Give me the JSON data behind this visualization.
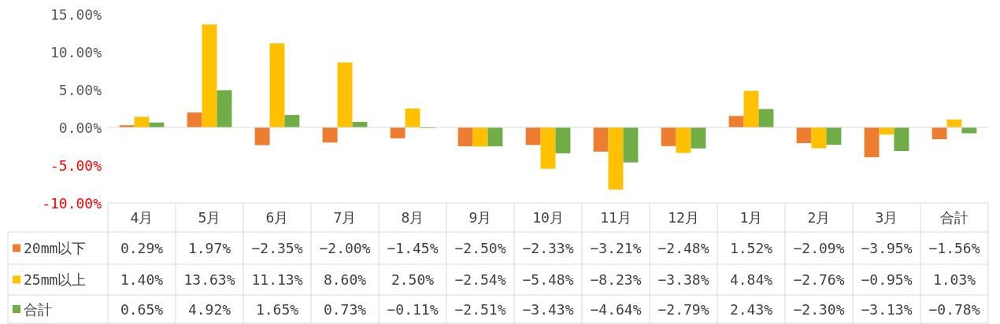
{
  "chart_data": {
    "type": "bar",
    "categories": [
      "4月",
      "5月",
      "6月",
      "7月",
      "8月",
      "9月",
      "10月",
      "11月",
      "12月",
      "1月",
      "2月",
      "3月",
      "合計"
    ],
    "series": [
      {
        "name": "20mm以下",
        "color": "#ed7d31",
        "values": [
          0.29,
          1.97,
          -2.35,
          -2.0,
          -1.45,
          -2.5,
          -2.33,
          -3.21,
          -2.48,
          1.52,
          -2.09,
          -3.95,
          -1.56
        ],
        "value_labels": [
          "0.29%",
          "1.97%",
          "−2.35%",
          "−2.00%",
          "−1.45%",
          "−2.50%",
          "−2.33%",
          "−3.21%",
          "−2.48%",
          "1.52%",
          "−2.09%",
          "−3.95%",
          "−1.56%"
        ]
      },
      {
        "name": "25mm以上",
        "color": "#ffc000",
        "values": [
          1.4,
          13.63,
          11.13,
          8.6,
          2.5,
          -2.54,
          -5.48,
          -8.23,
          -3.38,
          4.84,
          -2.76,
          -0.95,
          1.03
        ],
        "value_labels": [
          "1.40%",
          "13.63%",
          "11.13%",
          "8.60%",
          "2.50%",
          "−2.54%",
          "−5.48%",
          "−8.23%",
          "−3.38%",
          "4.84%",
          "−2.76%",
          "−0.95%",
          "1.03%"
        ]
      },
      {
        "name": "合計",
        "color": "#70ad47",
        "values": [
          0.65,
          4.92,
          1.65,
          0.73,
          -0.11,
          -2.51,
          -3.43,
          -4.64,
          -2.79,
          2.43,
          -2.3,
          -3.13,
          -0.78
        ],
        "value_labels": [
          "0.65%",
          "4.92%",
          "1.65%",
          "0.73%",
          "−0.11%",
          "−2.51%",
          "−3.43%",
          "−4.64%",
          "−2.79%",
          "2.43%",
          "−2.30%",
          "−3.13%",
          "−0.78%"
        ]
      }
    ],
    "ylim": [
      -10,
      15
    ],
    "yticks": [
      {
        "value": -10,
        "label": "-10.00%"
      },
      {
        "value": -5,
        "label": "-5.00%"
      },
      {
        "value": 0,
        "label": "0.00%"
      },
      {
        "value": 5,
        "label": "5.00%"
      },
      {
        "value": 10,
        "label": "10.00%"
      },
      {
        "value": 15,
        "label": "15.00%"
      }
    ],
    "ref_lines": [
      {
        "axis": "y",
        "value": 0,
        "color": "#d9d9d9"
      }
    ],
    "legend": "bottom",
    "grid": false
  }
}
